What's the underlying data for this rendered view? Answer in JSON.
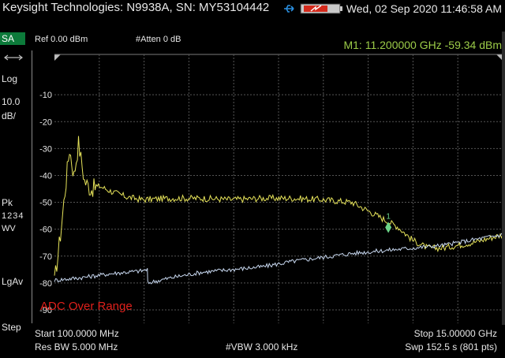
{
  "titlebar": {
    "title": "Keysight Technologies: N9938A, SN: MY53104442",
    "datetime": "Wed, 02 Sep 2020 11:46:58 AM",
    "icons": [
      "usb-icon",
      "battery-icon"
    ]
  },
  "sidebar": {
    "mode": "SA",
    "scale_type": "Log",
    "scale_value": "10.0",
    "scale_unit": "dB/",
    "detector": "Pk",
    "traces": "1234",
    "trace_mode": "WV",
    "avg_type": "LgAv",
    "step": "Step"
  },
  "header": {
    "ref_level": "Ref 0.00 dBm",
    "atten": "#Atten 0 dB",
    "marker": "M1:  11.200000 GHz  -59.34 dBm"
  },
  "warning": "ADC Over Range",
  "footer": {
    "start": "Start 100.0000 MHz",
    "stop": "Stop 15.00000 GHz",
    "rbw": "Res BW 5.000 MHz",
    "vbw": "#VBW 3.000 kHz",
    "sweep": "Swp 152.5  s (801 pts)"
  },
  "colors": {
    "trace_max": "#e6e35a",
    "trace_avg": "#c8d8f0",
    "marker": "#6cd488",
    "marker_text": "#9ccc48",
    "warning": "#e0201b",
    "mode_badge": "#0c7a3a"
  },
  "chart_data": {
    "type": "line",
    "x_range_ghz": [
      0.1,
      15.0
    ],
    "ylim": [
      -95,
      5
    ],
    "y_ticks": [
      "-10",
      "-20",
      "-30",
      "-40",
      "-50",
      "-60",
      "-70",
      "-80",
      "-90"
    ],
    "grid": true,
    "marker": {
      "label": "1",
      "x_ghz": 11.2,
      "y_dbm": -59.34
    },
    "series": [
      {
        "color": "#e6e35a",
        "x": [
          0.1,
          0.3,
          0.45,
          0.6,
          0.75,
          0.9,
          1.1,
          1.3,
          1.6,
          2.0,
          2.5,
          3.0,
          4.0,
          5.0,
          6.0,
          7.0,
          8.0,
          9.0,
          9.5,
          10.0,
          10.5,
          11.0,
          11.5,
          12.0,
          12.5,
          13.0,
          14.0,
          15.0
        ],
        "y": [
          -80,
          -62,
          -46,
          -30,
          -40,
          -28,
          -42,
          -45,
          -44,
          -46,
          -48,
          -49,
          -48.5,
          -48.5,
          -49,
          -48.5,
          -48.5,
          -49,
          -49.5,
          -50,
          -53,
          -56,
          -59,
          -64,
          -67,
          -67,
          -65,
          -62
        ]
      },
      {
        "color": "#c8d8f0",
        "x": [
          0.1,
          1.0,
          2.0,
          3.0,
          3.19,
          3.2,
          4.0,
          5.0,
          6.0,
          7.0,
          8.0,
          9.0,
          10.0,
          11.0,
          12.0,
          13.0,
          14.0,
          15.0
        ],
        "y": [
          -79,
          -78,
          -76.5,
          -75.5,
          -75,
          -80,
          -78,
          -76,
          -75,
          -74,
          -72,
          -70.5,
          -69,
          -68,
          -67,
          -66,
          -64,
          -62
        ]
      }
    ]
  }
}
